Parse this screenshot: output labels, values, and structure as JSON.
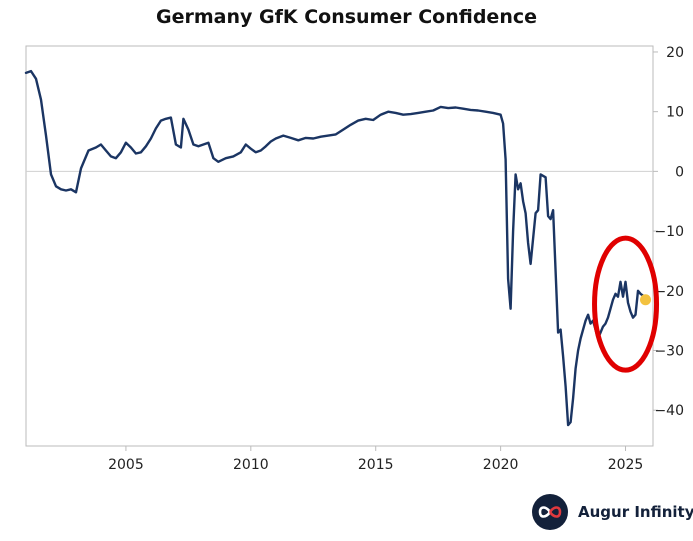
{
  "title": "Germany GfK Consumer Confidence",
  "brand": {
    "name": "Augur Infinity",
    "logo_icon": "infinity-icon"
  },
  "colors": {
    "line": "#1b3563",
    "highlight": "#f3c240",
    "circle": "#e00000",
    "axis": "#bbbbbb",
    "zero_line": "#d0d0d0"
  },
  "chart_data": {
    "type": "line",
    "title": "Germany GfK Consumer Confidence",
    "xlabel": "",
    "ylabel": "",
    "xlim": [
      2001.0,
      2026.1
    ],
    "ylim": [
      -46,
      21
    ],
    "y_ticks": [
      20,
      10,
      0,
      -10,
      -20,
      -30,
      -40
    ],
    "y_tick_labels": [
      "20",
      "10",
      "0",
      "−10",
      "−20",
      "−30",
      "−40"
    ],
    "x_ticks": [
      2005,
      2010,
      2015,
      2020,
      2025
    ],
    "x_tick_labels": [
      "2005",
      "2010",
      "2015",
      "2020",
      "2025"
    ],
    "y_axis_position": "right",
    "grid": false,
    "legend": "none",
    "series": [
      {
        "x": [
          2001.0,
          2001.2,
          2001.4,
          2001.6,
          2001.8,
          2002.0,
          2002.2,
          2002.4,
          2002.6,
          2002.8,
          2003.0,
          2003.2,
          2003.5,
          2003.8,
          2004.0,
          2004.2,
          2004.4,
          2004.6,
          2004.8,
          2005.0,
          2005.2,
          2005.4,
          2005.6,
          2005.8,
          2006.0,
          2006.2,
          2006.4,
          2006.6,
          2006.8,
          2007.0,
          2007.2,
          2007.3,
          2007.5,
          2007.7,
          2007.9,
          2008.1,
          2008.3,
          2008.5,
          2008.7,
          2009.0,
          2009.3,
          2009.6,
          2009.8,
          2010.0,
          2010.2,
          2010.4,
          2010.6,
          2010.8,
          2011.0,
          2011.3,
          2011.6,
          2011.9,
          2012.2,
          2012.5,
          2012.8,
          2013.1,
          2013.4,
          2013.7,
          2014.0,
          2014.3,
          2014.6,
          2014.9,
          2015.2,
          2015.5,
          2015.8,
          2016.1,
          2016.4,
          2016.7,
          2017.0,
          2017.3,
          2017.6,
          2017.9,
          2018.2,
          2018.5,
          2018.8,
          2019.1,
          2019.4,
          2019.7,
          2020.0,
          2020.1,
          2020.2,
          2020.3,
          2020.4,
          2020.5,
          2020.6,
          2020.7,
          2020.8,
          2020.9,
          2021.0,
          2021.1,
          2021.2,
          2021.4,
          2021.5,
          2021.6,
          2021.8,
          2021.9,
          2022.0,
          2022.1,
          2022.3,
          2022.4,
          2022.5,
          2022.6,
          2022.7,
          2022.8,
          2022.9,
          2023.0,
          2023.1,
          2023.2,
          2023.4,
          2023.5,
          2023.6,
          2023.7,
          2023.8,
          2023.9,
          2024.0,
          2024.1,
          2024.2,
          2024.3,
          2024.4,
          2024.5,
          2024.6,
          2024.7,
          2024.8,
          2024.9,
          2025.0,
          2025.1,
          2025.2,
          2025.3,
          2025.4,
          2025.5,
          2025.6,
          2025.7
        ],
        "values": [
          16.5,
          16.8,
          15.5,
          12.0,
          6.0,
          -0.5,
          -2.5,
          -3.0,
          -3.2,
          -3.0,
          -3.5,
          0.5,
          3.5,
          4.0,
          4.5,
          3.5,
          2.5,
          2.2,
          3.2,
          4.8,
          4.0,
          3.0,
          3.2,
          4.2,
          5.5,
          7.2,
          8.5,
          8.8,
          9.0,
          4.5,
          4.0,
          8.8,
          7.0,
          4.5,
          4.2,
          4.5,
          4.8,
          2.2,
          1.6,
          2.2,
          2.5,
          3.2,
          4.5,
          3.8,
          3.2,
          3.5,
          4.2,
          5.0,
          5.5,
          6.0,
          5.6,
          5.2,
          5.6,
          5.5,
          5.8,
          6.0,
          6.2,
          7.0,
          7.8,
          8.5,
          8.8,
          8.6,
          9.5,
          10.0,
          9.8,
          9.5,
          9.6,
          9.8,
          10.0,
          10.2,
          10.8,
          10.6,
          10.7,
          10.5,
          10.3,
          10.2,
          10.0,
          9.8,
          9.5,
          8.0,
          2.0,
          -18.0,
          -23.0,
          -10.0,
          -0.5,
          -3.0,
          -2.0,
          -5.0,
          -7.0,
          -12.0,
          -15.5,
          -7.0,
          -6.5,
          -0.5,
          -1.0,
          -7.5,
          -8.0,
          -6.5,
          -27.0,
          -26.5,
          -31.0,
          -36.0,
          -42.5,
          -42.0,
          -38.0,
          -33.0,
          -30.0,
          -28.0,
          -25.0,
          -24.0,
          -25.5,
          -25.0,
          -26.5,
          -28.0,
          -27.0,
          -26.0,
          -25.5,
          -24.5,
          -23.0,
          -21.5,
          -20.5,
          -21.0,
          -18.5,
          -21.0,
          -18.5,
          -22.0,
          -23.5,
          -24.5,
          -24.0,
          -20.0,
          -20.5,
          -20.8
        ],
        "highlight_point": {
          "x": 2025.8,
          "value": -21.5
        },
        "annotation": "circle"
      }
    ]
  }
}
